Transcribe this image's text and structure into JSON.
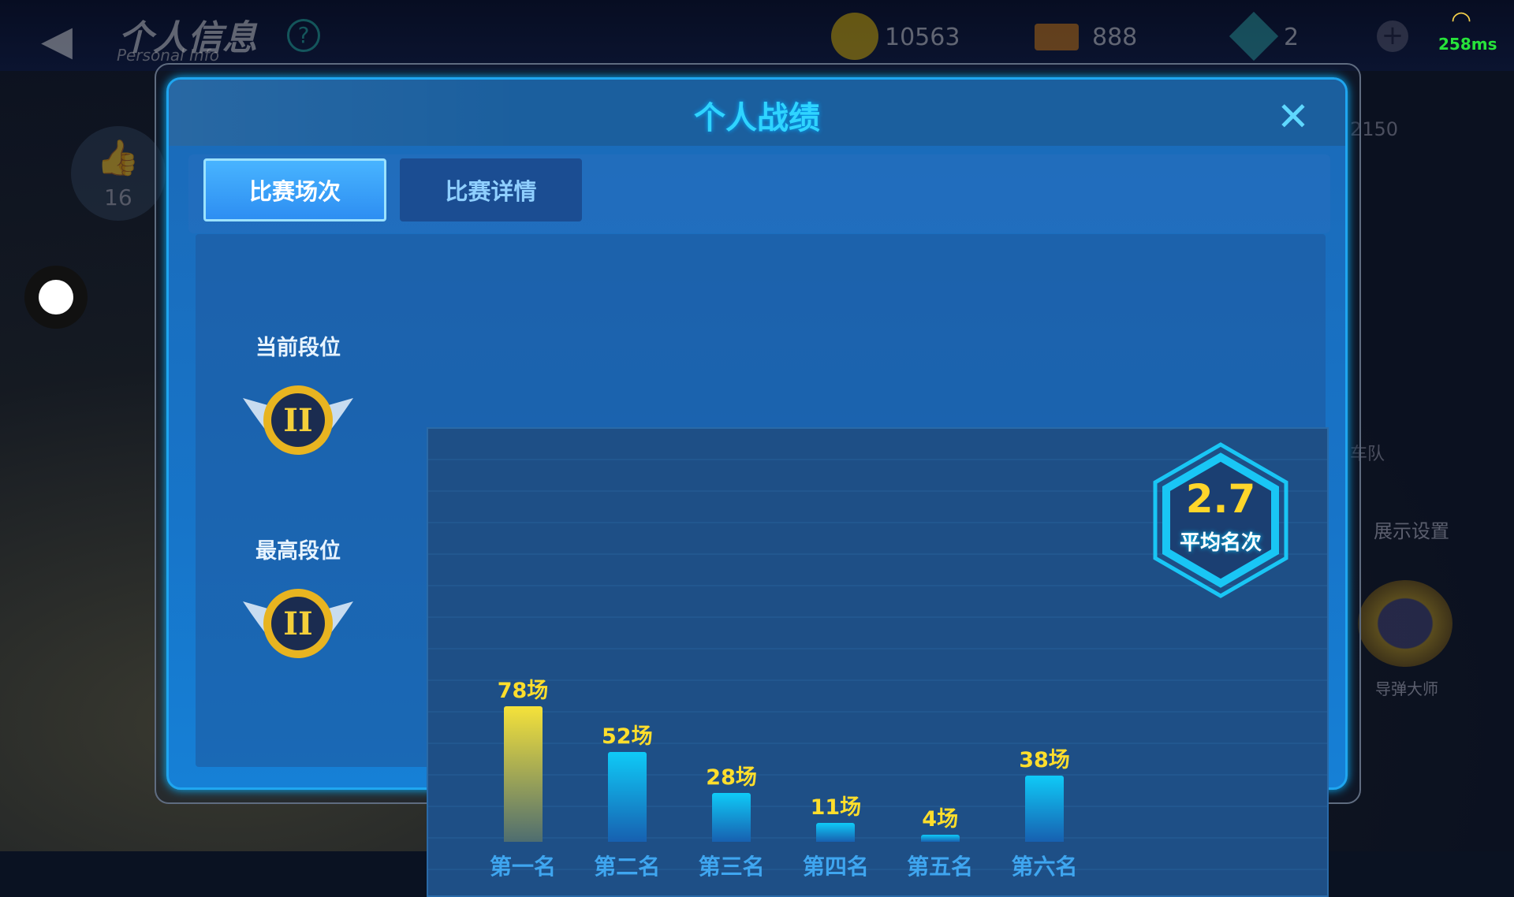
{
  "topbar": {
    "title": "个人信息",
    "subtitle": "Personal Info",
    "coins": "10563",
    "tickets": "888",
    "gems": "2",
    "ping": "258ms"
  },
  "background": {
    "likes": "16",
    "score": "2150",
    "team_label": "车队",
    "display_settings": "展示设置",
    "title_badge": "导弹大师"
  },
  "modal": {
    "title": "个人战绩",
    "tabs": [
      {
        "label": "比赛场次",
        "active": true
      },
      {
        "label": "比赛详情",
        "active": false
      }
    ],
    "current_rank_label": "当前段位",
    "highest_rank_label": "最高段位",
    "rank_badge": "II",
    "average": {
      "value": "2.7",
      "label": "平均名次"
    }
  },
  "chart_data": {
    "type": "bar",
    "categories": [
      "第一名",
      "第二名",
      "第三名",
      "第四名",
      "第五名",
      "第六名"
    ],
    "values": [
      78,
      52,
      28,
      11,
      4,
      38
    ],
    "value_labels": [
      "78场",
      "52场",
      "28场",
      "11场",
      "4场",
      "38场"
    ],
    "highlight_index": 0,
    "colors": {
      "highlight": "#f5e23a",
      "normal": "#0fcaf7"
    }
  }
}
